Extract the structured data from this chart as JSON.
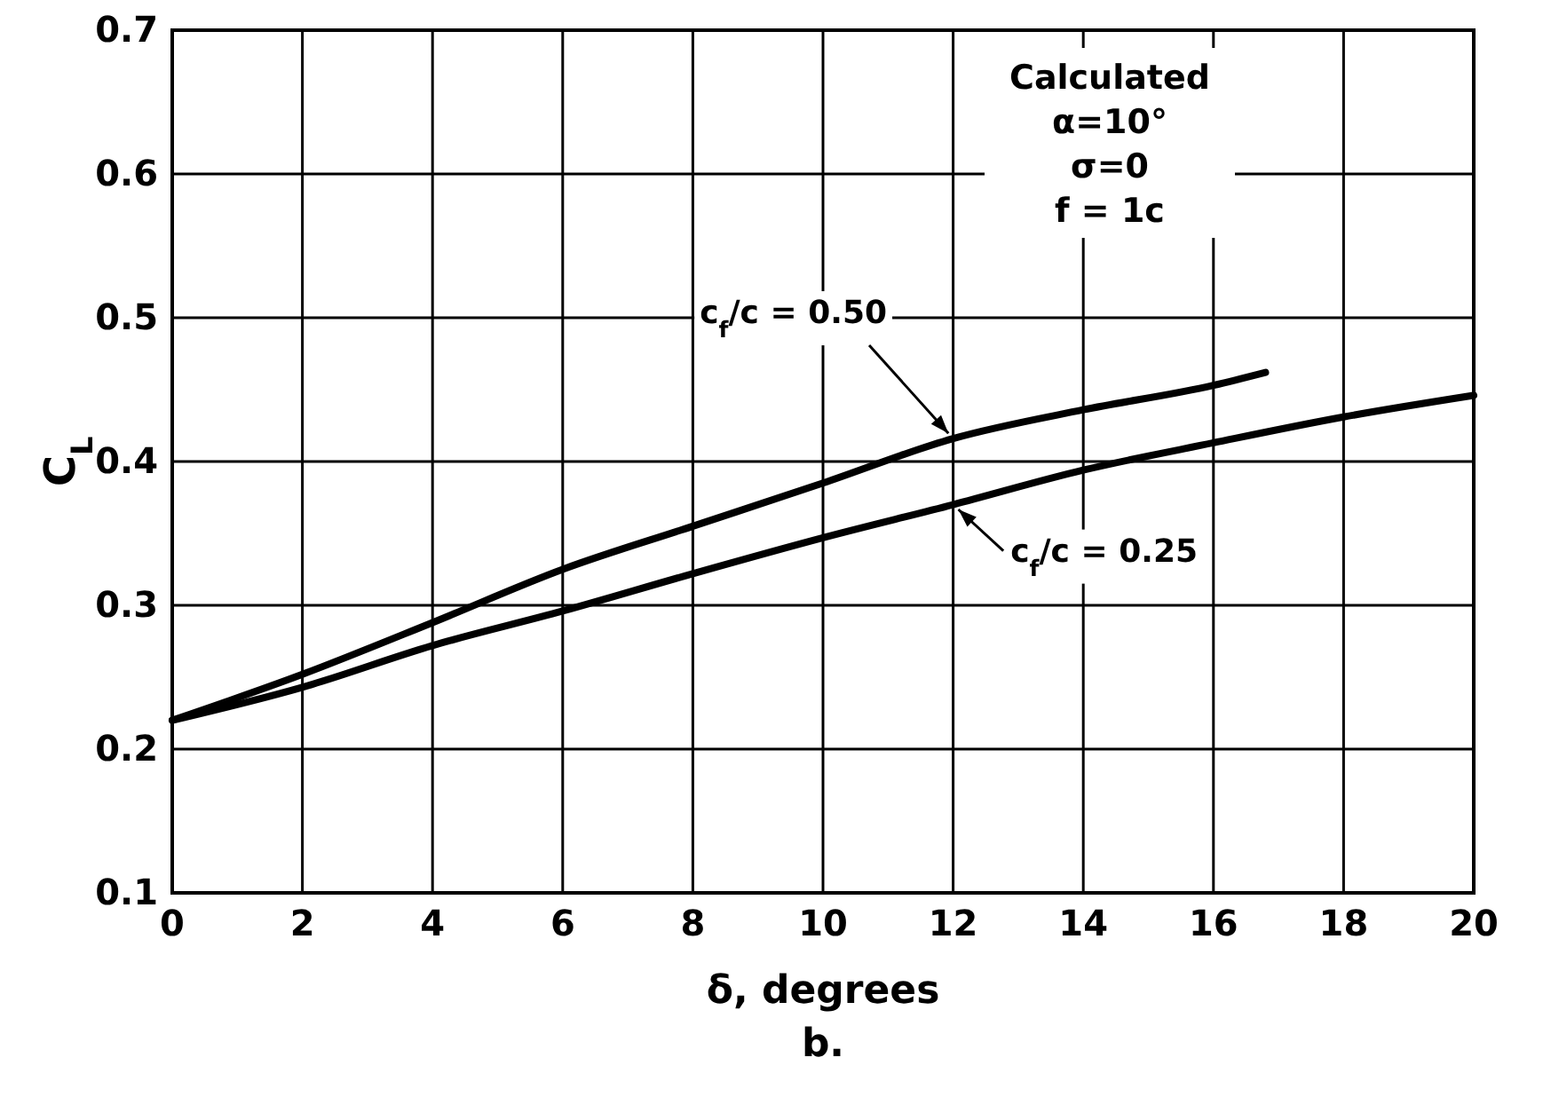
{
  "chart_data": {
    "type": "line",
    "xlabel": "δ, degrees",
    "ylabel": "C$_{L}$",
    "xlim": [
      0,
      20
    ],
    "xticks": [
      0,
      2,
      4,
      6,
      8,
      10,
      12,
      14,
      16,
      18,
      20
    ],
    "ylim": [
      0.1,
      0.7
    ],
    "yticks": [
      0.1,
      0.2,
      0.3,
      0.4,
      0.5,
      0.6,
      0.7
    ],
    "grid": true,
    "line_style": "solid",
    "marker": "none",
    "series": [
      {
        "name": "c$_{f}$/c = 0.50",
        "color": "#000000",
        "x": [
          0,
          2,
          4,
          6,
          8,
          10,
          12,
          14,
          16,
          16.8
        ],
        "values": [
          0.22,
          0.252,
          0.288,
          0.325,
          0.355,
          0.385,
          0.416,
          0.436,
          0.453,
          0.462
        ]
      },
      {
        "name": "c$_{f}$/c = 0.25",
        "color": "#000000",
        "x": [
          0,
          2,
          4,
          6,
          8,
          10,
          12,
          14,
          16,
          18,
          20
        ],
        "values": [
          0.22,
          0.243,
          0.272,
          0.296,
          0.322,
          0.347,
          0.37,
          0.394,
          0.413,
          0.431,
          0.446
        ]
      }
    ],
    "annotations": [
      "Calculated",
      "α=10°",
      "σ=0",
      "f = 1c",
      "b."
    ]
  }
}
